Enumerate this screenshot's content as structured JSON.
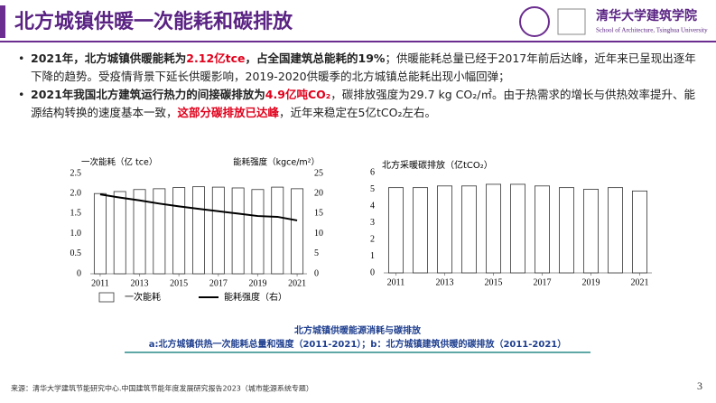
{
  "header": {
    "title": "北方城镇供暖一次能耗和碳排放",
    "logo_name": "清华大学建筑学院",
    "logo_subtitle": "School of Architecture, Tsinghua University"
  },
  "bullets": [
    [
      {
        "text": "2021年，北方城镇供暖能耗为",
        "style": "bold"
      },
      {
        "text": "2.12亿tce",
        "style": "red"
      },
      {
        "text": "，占全国建筑总能耗的19%",
        "style": "bold"
      },
      {
        "text": "；供暖能耗总量已经于2017年前后达峰，近年来已呈现出逐年下降的趋势。受疫情背景下延长供暖影响，2019-2020供暖季的北方城镇总能耗出现小幅回弹；",
        "style": "normal"
      }
    ],
    [
      {
        "text": "2021年我国北方建筑运行热力的间接碳排放为",
        "style": "bold"
      },
      {
        "text": "4.9亿吨CO₂",
        "style": "red"
      },
      {
        "text": "，碳排放强度为29.7 kg CO₂/㎡。由于热需求的增长与供热效率提升、能源结构转换的速度基本一致，",
        "style": "normal"
      },
      {
        "text": "这部分碳排放已达峰",
        "style": "red"
      },
      {
        "text": "，近年来稳定在5亿tCO₂左右。",
        "style": "normal"
      }
    ]
  ],
  "chart_data": [
    {
      "type": "bar",
      "y_label": "一次能耗（亿 tce）",
      "y2_label": "能耗强度（kgce/m²）",
      "x": [
        2011,
        2012,
        2013,
        2014,
        2015,
        2016,
        2017,
        2018,
        2019,
        2020,
        2021
      ],
      "xlim": [
        2011,
        2021
      ],
      "xticks": [
        2011,
        2013,
        2015,
        2017,
        2019,
        2021
      ],
      "ylim": [
        0,
        2.5
      ],
      "yticks": [
        0,
        0.5,
        {
          "value": 1,
          "label": "1.0"
        },
        1.5,
        {
          "value": 2,
          "label": "2.0"
        },
        2.5
      ],
      "y2lim": [
        0,
        25
      ],
      "y2ticks": [
        0,
        5,
        10,
        15,
        20,
        25
      ],
      "series": [
        {
          "name": "一次能耗",
          "type": "bar",
          "color": "#ffffff",
          "values": [
            2.0,
            2.05,
            2.1,
            2.12,
            2.15,
            2.17,
            2.16,
            2.14,
            2.1,
            2.16,
            2.12
          ]
        },
        {
          "name": "能耗强度（右）",
          "type": "line",
          "axis": "y2",
          "color": "#000000",
          "values": [
            19.8,
            19.0,
            18.3,
            17.5,
            16.8,
            16.2,
            15.6,
            15.0,
            14.4,
            14.2,
            13.3
          ]
        }
      ]
    },
    {
      "type": "bar",
      "title": "北方采暖碳排放（亿tCO₂）",
      "x": [
        2011,
        2012,
        2013,
        2014,
        2015,
        2016,
        2017,
        2018,
        2019,
        2020,
        2021
      ],
      "xlim": [
        2011,
        2021
      ],
      "xticks": [
        2011,
        2013,
        2015,
        2017,
        2019,
        2021
      ],
      "ylim": [
        0,
        6
      ],
      "yticks": [
        0,
        1,
        2,
        3,
        4,
        5,
        6
      ],
      "series": [
        {
          "type": "bar",
          "color": "#ffffff",
          "values": [
            5.1,
            5.1,
            5.2,
            5.2,
            5.3,
            5.3,
            5.2,
            5.1,
            5.0,
            5.1,
            4.9
          ]
        }
      ]
    }
  ],
  "caption": {
    "title": "北方城镇供暖能源消耗与碳排放",
    "text": "a:北方城镇供热一次能耗总量和强度（2011-2021）；b：北方城镇建筑供暖的碳排放（2011-2021）"
  },
  "source": "来源：清华大学建筑节能研究中心.中国建筑节能年度发展研究报告2023（城市能源系统专题）",
  "page_number": "3"
}
